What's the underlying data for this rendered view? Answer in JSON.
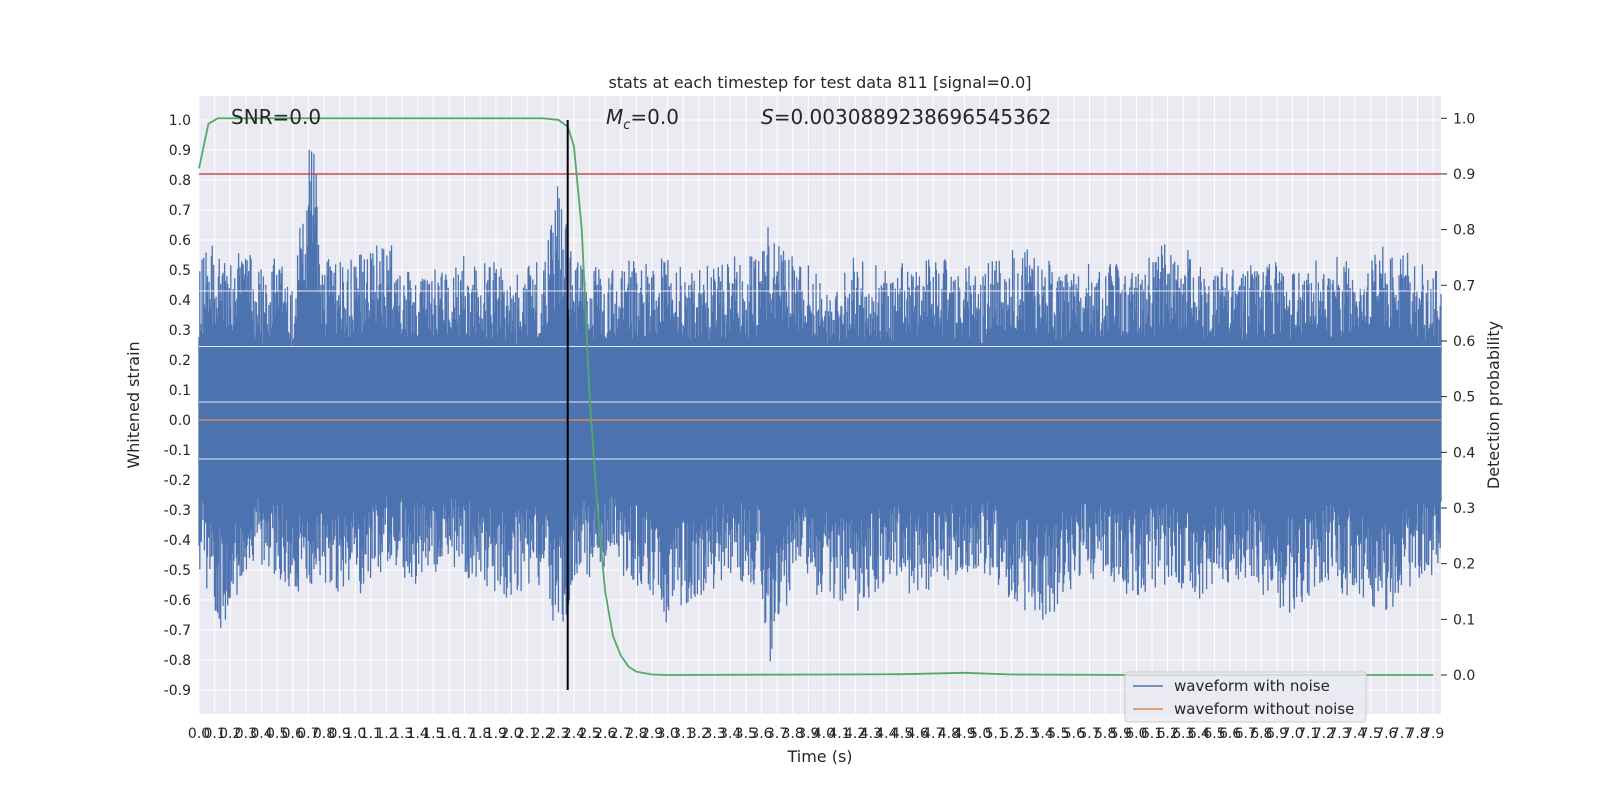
{
  "chart_data": {
    "type": "line",
    "title": "stats at each timestep for test data 811 [signal=0.0]",
    "xlabel": "Time (s)",
    "ylabel": "Whitened strain",
    "y2label": "Detection probability",
    "xlim": [
      0.0,
      7.95
    ],
    "ylim": [
      -0.98,
      1.08
    ],
    "y2lim": [
      -0.07,
      1.04
    ],
    "x_ticks": [
      0.0,
      0.1,
      0.2,
      0.3,
      0.4,
      0.5,
      0.6,
      0.7,
      0.8,
      0.9,
      1.0,
      1.1,
      1.2,
      1.3,
      1.4,
      1.5,
      1.6,
      1.7,
      1.8,
      1.9,
      2.0,
      2.1,
      2.2,
      2.3,
      2.4,
      2.5,
      2.6,
      2.7,
      2.8,
      2.9,
      3.0,
      3.1,
      3.2,
      3.3,
      3.4,
      3.5,
      3.6,
      3.7,
      3.8,
      3.9,
      4.0,
      4.1,
      4.2,
      4.3,
      4.4,
      4.5,
      4.6,
      4.7,
      4.8,
      4.9,
      5.0,
      5.1,
      5.2,
      5.3,
      5.4,
      5.5,
      5.6,
      5.7,
      5.8,
      5.9,
      6.0,
      6.1,
      6.2,
      6.3,
      6.4,
      6.5,
      6.6,
      6.7,
      6.8,
      6.9,
      7.0,
      7.1,
      7.2,
      7.3,
      7.4,
      7.5,
      7.6,
      7.7,
      7.8,
      7.9
    ],
    "y_ticks": [
      -0.9,
      -0.8,
      -0.7,
      -0.6,
      -0.5,
      -0.4,
      -0.3,
      -0.2,
      -0.1,
      0.0,
      0.1,
      0.2,
      0.3,
      0.4,
      0.5,
      0.6,
      0.7,
      0.8,
      0.9,
      1.0
    ],
    "y2_ticks": [
      0.0,
      0.1,
      0.2,
      0.3,
      0.4,
      0.5,
      0.6,
      0.7,
      0.8,
      0.9,
      1.0
    ],
    "grid": true,
    "legend_position": "bottom-right",
    "annotations": {
      "snr": "SNR=0.0",
      "mc_symbol": "M",
      "mc_sub": "c",
      "mc_value": "=0.0",
      "s_symbol": "S",
      "s_value": "=0.0030889238696545362"
    },
    "series": [
      {
        "name": "waveform with noise",
        "color": "#4c72b0",
        "axis": "left",
        "envelope_upper": [
          [
            0.0,
            0.55
          ],
          [
            0.1,
            0.6
          ],
          [
            0.2,
            0.55
          ],
          [
            0.3,
            0.6
          ],
          [
            0.4,
            0.5
          ],
          [
            0.5,
            0.55
          ],
          [
            0.6,
            0.45
          ],
          [
            0.72,
            1.0
          ],
          [
            0.8,
            0.55
          ],
          [
            1.0,
            0.55
          ],
          [
            1.2,
            0.6
          ],
          [
            1.4,
            0.5
          ],
          [
            1.6,
            0.55
          ],
          [
            1.8,
            0.55
          ],
          [
            2.0,
            0.5
          ],
          [
            2.2,
            0.55
          ],
          [
            2.3,
            0.79
          ],
          [
            2.4,
            0.55
          ],
          [
            2.6,
            0.5
          ],
          [
            2.8,
            0.55
          ],
          [
            3.0,
            0.55
          ],
          [
            3.2,
            0.5
          ],
          [
            3.4,
            0.55
          ],
          [
            3.6,
            0.55
          ],
          [
            3.65,
            0.71
          ],
          [
            3.8,
            0.55
          ],
          [
            4.0,
            0.5
          ],
          [
            4.2,
            0.55
          ],
          [
            4.4,
            0.5
          ],
          [
            4.6,
            0.55
          ],
          [
            4.8,
            0.55
          ],
          [
            5.0,
            0.5
          ],
          [
            5.2,
            0.6
          ],
          [
            5.4,
            0.55
          ],
          [
            5.6,
            0.5
          ],
          [
            5.8,
            0.55
          ],
          [
            6.0,
            0.5
          ],
          [
            6.2,
            0.6
          ],
          [
            6.4,
            0.55
          ],
          [
            6.6,
            0.5
          ],
          [
            6.8,
            0.55
          ],
          [
            7.0,
            0.5
          ],
          [
            7.2,
            0.55
          ],
          [
            7.4,
            0.55
          ],
          [
            7.6,
            0.6
          ],
          [
            7.8,
            0.55
          ],
          [
            7.95,
            0.5
          ]
        ],
        "envelope_lower": [
          [
            0.0,
            -0.5
          ],
          [
            0.18,
            -0.75
          ],
          [
            0.3,
            -0.5
          ],
          [
            0.5,
            -0.55
          ],
          [
            0.6,
            -0.6
          ],
          [
            0.8,
            -0.55
          ],
          [
            1.0,
            -0.6
          ],
          [
            1.2,
            -0.5
          ],
          [
            1.4,
            -0.55
          ],
          [
            1.6,
            -0.5
          ],
          [
            1.8,
            -0.55
          ],
          [
            2.0,
            -0.6
          ],
          [
            2.2,
            -0.55
          ],
          [
            2.3,
            -0.78
          ],
          [
            2.4,
            -0.55
          ],
          [
            2.6,
            -0.5
          ],
          [
            2.8,
            -0.55
          ],
          [
            3.0,
            -0.7
          ],
          [
            3.2,
            -0.6
          ],
          [
            3.4,
            -0.55
          ],
          [
            3.6,
            -0.55
          ],
          [
            3.65,
            -0.87
          ],
          [
            3.8,
            -0.55
          ],
          [
            4.0,
            -0.6
          ],
          [
            4.2,
            -0.65
          ],
          [
            4.4,
            -0.55
          ],
          [
            4.6,
            -0.6
          ],
          [
            4.8,
            -0.55
          ],
          [
            5.0,
            -0.5
          ],
          [
            5.2,
            -0.6
          ],
          [
            5.4,
            -0.7
          ],
          [
            5.6,
            -0.55
          ],
          [
            5.8,
            -0.55
          ],
          [
            6.0,
            -0.6
          ],
          [
            6.2,
            -0.55
          ],
          [
            6.4,
            -0.6
          ],
          [
            6.6,
            -0.55
          ],
          [
            6.8,
            -0.6
          ],
          [
            7.0,
            -0.65
          ],
          [
            7.2,
            -0.55
          ],
          [
            7.4,
            -0.6
          ],
          [
            7.6,
            -0.65
          ],
          [
            7.8,
            -0.55
          ],
          [
            7.95,
            -0.5
          ]
        ]
      },
      {
        "name": "waveform without noise",
        "color": "#dd8452",
        "axis": "left",
        "points": [
          [
            0.0,
            0.0
          ],
          [
            7.95,
            0.0
          ]
        ]
      },
      {
        "color": "#55a868",
        "axis": "right",
        "points": [
          [
            0.0,
            0.91
          ],
          [
            0.06,
            0.99
          ],
          [
            0.12,
            1.0
          ],
          [
            0.5,
            1.0
          ],
          [
            1.0,
            1.0
          ],
          [
            1.5,
            1.0
          ],
          [
            2.0,
            1.0
          ],
          [
            2.2,
            1.0
          ],
          [
            2.3,
            0.997
          ],
          [
            2.36,
            0.985
          ],
          [
            2.4,
            0.95
          ],
          [
            2.45,
            0.8
          ],
          [
            2.5,
            0.5
          ],
          [
            2.55,
            0.3
          ],
          [
            2.6,
            0.15
          ],
          [
            2.65,
            0.07
          ],
          [
            2.7,
            0.035
          ],
          [
            2.75,
            0.015
          ],
          [
            2.8,
            0.006
          ],
          [
            2.9,
            0.001
          ],
          [
            3.0,
            0.0
          ],
          [
            4.0,
            0.001
          ],
          [
            4.5,
            0.0015
          ],
          [
            4.9,
            0.004
          ],
          [
            5.2,
            0.001
          ],
          [
            6.0,
            0.0
          ],
          [
            7.0,
            0.0
          ],
          [
            7.9,
            0.0
          ]
        ]
      }
    ],
    "hlines": [
      {
        "axis": "right",
        "y": 0.9,
        "color": "#c44e52"
      }
    ],
    "vlines": [
      {
        "x": 2.36,
        "ymin": -0.9,
        "ymax": 1.0,
        "color": "#000000"
      }
    ]
  }
}
